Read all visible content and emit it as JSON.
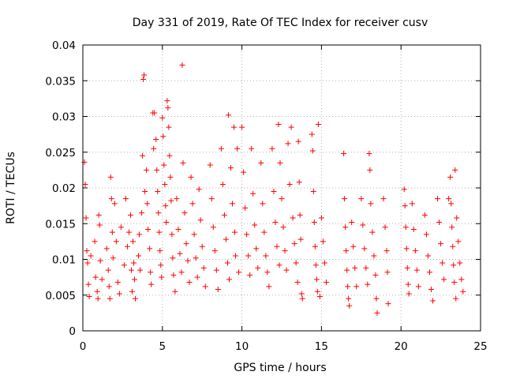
{
  "chart_data": {
    "type": "scatter",
    "title": "Day 331 of 2019, Rate Of TEC Index for receiver cusv",
    "xlabel": "GPS time / hours",
    "ylabel": "ROTI / TECUs",
    "xlim": [
      0,
      25
    ],
    "ylim": [
      0,
      0.04
    ],
    "x_ticks": [
      0,
      5,
      10,
      15,
      20,
      25
    ],
    "x_tick_labels": [
      "0",
      "5",
      "10",
      "15",
      "20",
      "25"
    ],
    "y_ticks": [
      0,
      0.005,
      0.01,
      0.015,
      0.02,
      0.025,
      0.03,
      0.035,
      0.04
    ],
    "y_tick_labels": [
      "0",
      "0.005",
      "0.01",
      "0.015",
      "0.02",
      "0.025",
      "0.03",
      "0.035",
      "0.04"
    ],
    "grid": true,
    "marker": "+",
    "marker_color": "#ff0000",
    "series": [
      {
        "name": "ROTI",
        "points": [
          [
            0.1,
            0.0236
          ],
          [
            0.15,
            0.0205
          ],
          [
            0.2,
            0.0158
          ],
          [
            0.25,
            0.0112
          ],
          [
            0.3,
            0.0095
          ],
          [
            0.35,
            0.0065
          ],
          [
            0.4,
            0.0048
          ],
          [
            0.5,
            0.0105
          ],
          [
            0.75,
            0.0125
          ],
          [
            0.8,
            0.0075
          ],
          [
            0.9,
            0.0055
          ],
          [
            0.95,
            0.0045
          ],
          [
            1.0,
            0.0162
          ],
          [
            1.05,
            0.0148
          ],
          [
            1.1,
            0.0098
          ],
          [
            1.2,
            0.0072
          ],
          [
            1.5,
            0.0115
          ],
          [
            1.6,
            0.0085
          ],
          [
            1.65,
            0.0062
          ],
          [
            1.7,
            0.0045
          ],
          [
            1.75,
            0.0215
          ],
          [
            1.8,
            0.0185
          ],
          [
            1.85,
            0.0138
          ],
          [
            1.9,
            0.0102
          ],
          [
            2.0,
            0.0178
          ],
          [
            2.1,
            0.0125
          ],
          [
            2.2,
            0.0068
          ],
          [
            2.3,
            0.0052
          ],
          [
            2.4,
            0.0145
          ],
          [
            2.6,
            0.0092
          ],
          [
            2.7,
            0.0185
          ],
          [
            2.8,
            0.0118
          ],
          [
            2.9,
            0.0138
          ],
          [
            3.0,
            0.0162
          ],
          [
            3.05,
            0.0085
          ],
          [
            3.1,
            0.0055
          ],
          [
            3.15,
            0.0125
          ],
          [
            3.2,
            0.0095
          ],
          [
            3.25,
            0.0072
          ],
          [
            3.3,
            0.0045
          ],
          [
            3.5,
            0.0105
          ],
          [
            3.55,
            0.0135
          ],
          [
            3.6,
            0.0085
          ],
          [
            3.7,
            0.0165
          ],
          [
            3.75,
            0.0245
          ],
          [
            3.8,
            0.0352
          ],
          [
            3.85,
            0.0358
          ],
          [
            3.9,
            0.0195
          ],
          [
            4.0,
            0.0225
          ],
          [
            4.05,
            0.0178
          ],
          [
            4.1,
            0.0142
          ],
          [
            4.2,
            0.0115
          ],
          [
            4.25,
            0.0082
          ],
          [
            4.3,
            0.0065
          ],
          [
            4.4,
            0.0305
          ],
          [
            4.45,
            0.0255
          ],
          [
            4.5,
            0.0305
          ],
          [
            4.6,
            0.0268
          ],
          [
            4.65,
            0.0225
          ],
          [
            4.7,
            0.0195
          ],
          [
            4.75,
            0.0165
          ],
          [
            4.8,
            0.0138
          ],
          [
            4.85,
            0.0112
          ],
          [
            4.9,
            0.0092
          ],
          [
            4.95,
            0.0075
          ],
          [
            5.0,
            0.0298
          ],
          [
            5.05,
            0.0272
          ],
          [
            5.1,
            0.0232
          ],
          [
            5.15,
            0.0205
          ],
          [
            5.2,
            0.0175
          ],
          [
            5.25,
            0.0152
          ],
          [
            5.3,
            0.0322
          ],
          [
            5.35,
            0.0312
          ],
          [
            5.4,
            0.0285
          ],
          [
            5.45,
            0.0245
          ],
          [
            5.5,
            0.0215
          ],
          [
            5.55,
            0.0182
          ],
          [
            5.6,
            0.0135
          ],
          [
            5.65,
            0.0102
          ],
          [
            5.7,
            0.0078
          ],
          [
            5.8,
            0.0055
          ],
          [
            5.9,
            0.0185
          ],
          [
            6.0,
            0.0142
          ],
          [
            6.1,
            0.0108
          ],
          [
            6.2,
            0.0082
          ],
          [
            6.25,
            0.0372
          ],
          [
            6.3,
            0.0235
          ],
          [
            6.4,
            0.0165
          ],
          [
            6.5,
            0.0122
          ],
          [
            6.6,
            0.0098
          ],
          [
            6.7,
            0.0068
          ],
          [
            6.8,
            0.0215
          ],
          [
            6.9,
            0.0178
          ],
          [
            7.0,
            0.0135
          ],
          [
            7.1,
            0.0102
          ],
          [
            7.2,
            0.0075
          ],
          [
            7.3,
            0.0198
          ],
          [
            7.4,
            0.0155
          ],
          [
            7.5,
            0.0118
          ],
          [
            7.6,
            0.0088
          ],
          [
            7.7,
            0.0062
          ],
          [
            8.0,
            0.0232
          ],
          [
            8.1,
            0.0185
          ],
          [
            8.2,
            0.0145
          ],
          [
            8.3,
            0.0112
          ],
          [
            8.4,
            0.0085
          ],
          [
            8.5,
            0.0058
          ],
          [
            8.7,
            0.0255
          ],
          [
            8.8,
            0.0205
          ],
          [
            8.9,
            0.0162
          ],
          [
            9.0,
            0.0128
          ],
          [
            9.1,
            0.0095
          ],
          [
            9.15,
            0.0302
          ],
          [
            9.2,
            0.0072
          ],
          [
            9.3,
            0.0228
          ],
          [
            9.4,
            0.0178
          ],
          [
            9.5,
            0.0285
          ],
          [
            9.55,
            0.0138
          ],
          [
            9.6,
            0.0105
          ],
          [
            9.7,
            0.0255
          ],
          [
            9.8,
            0.0082
          ],
          [
            10.0,
            0.0285
          ],
          [
            10.1,
            0.0222
          ],
          [
            10.2,
            0.0172
          ],
          [
            10.3,
            0.0135
          ],
          [
            10.4,
            0.0105
          ],
          [
            10.5,
            0.0078
          ],
          [
            10.6,
            0.0255
          ],
          [
            10.7,
            0.0192
          ],
          [
            10.8,
            0.0148
          ],
          [
            10.9,
            0.0115
          ],
          [
            11.0,
            0.0088
          ],
          [
            11.2,
            0.0235
          ],
          [
            11.3,
            0.0178
          ],
          [
            11.4,
            0.0138
          ],
          [
            11.5,
            0.0105
          ],
          [
            11.6,
            0.0082
          ],
          [
            11.7,
            0.0062
          ],
          [
            11.9,
            0.0255
          ],
          [
            12.0,
            0.0195
          ],
          [
            12.1,
            0.0152
          ],
          [
            12.2,
            0.0118
          ],
          [
            12.3,
            0.0289
          ],
          [
            12.35,
            0.0092
          ],
          [
            12.4,
            0.0235
          ],
          [
            12.5,
            0.0185
          ],
          [
            12.6,
            0.0145
          ],
          [
            12.7,
            0.0112
          ],
          [
            12.8,
            0.0085
          ],
          [
            12.9,
            0.0262
          ],
          [
            13.0,
            0.0205
          ],
          [
            13.1,
            0.0285
          ],
          [
            13.2,
            0.0158
          ],
          [
            13.3,
            0.0122
          ],
          [
            13.4,
            0.0095
          ],
          [
            13.5,
            0.0068
          ],
          [
            13.55,
            0.0265
          ],
          [
            13.6,
            0.0208
          ],
          [
            13.65,
            0.0162
          ],
          [
            13.7,
            0.0128
          ],
          [
            13.75,
            0.0052
          ],
          [
            13.8,
            0.0045
          ],
          [
            14.4,
            0.0275
          ],
          [
            14.45,
            0.0252
          ],
          [
            14.5,
            0.0195
          ],
          [
            14.55,
            0.0152
          ],
          [
            14.6,
            0.0118
          ],
          [
            14.65,
            0.0092
          ],
          [
            14.7,
            0.0072
          ],
          [
            14.75,
            0.0055
          ],
          [
            14.8,
            0.0289
          ],
          [
            14.9,
            0.0048
          ],
          [
            15.0,
            0.0158
          ],
          [
            15.1,
            0.0125
          ],
          [
            15.2,
            0.0095
          ],
          [
            15.3,
            0.0068
          ],
          [
            16.4,
            0.0248
          ],
          [
            16.45,
            0.0185
          ],
          [
            16.5,
            0.0145
          ],
          [
            16.55,
            0.0112
          ],
          [
            16.6,
            0.0085
          ],
          [
            16.65,
            0.0062
          ],
          [
            16.7,
            0.0045
          ],
          [
            16.75,
            0.0035
          ],
          [
            16.9,
            0.0152
          ],
          [
            17.0,
            0.0118
          ],
          [
            17.1,
            0.0088
          ],
          [
            17.2,
            0.0062
          ],
          [
            17.5,
            0.0185
          ],
          [
            17.6,
            0.0148
          ],
          [
            17.7,
            0.0115
          ],
          [
            17.8,
            0.0088
          ],
          [
            17.9,
            0.0065
          ],
          [
            18.0,
            0.0248
          ],
          [
            18.05,
            0.0225
          ],
          [
            18.1,
            0.0178
          ],
          [
            18.2,
            0.0138
          ],
          [
            18.3,
            0.0105
          ],
          [
            18.4,
            0.0078
          ],
          [
            18.45,
            0.0045
          ],
          [
            18.5,
            0.0025
          ],
          [
            18.9,
            0.0185
          ],
          [
            19.0,
            0.0145
          ],
          [
            19.1,
            0.0112
          ],
          [
            19.15,
            0.0082
          ],
          [
            19.2,
            0.0038
          ],
          [
            20.2,
            0.0198
          ],
          [
            20.25,
            0.0175
          ],
          [
            20.3,
            0.0145
          ],
          [
            20.35,
            0.0115
          ],
          [
            20.4,
            0.0088
          ],
          [
            20.45,
            0.0065
          ],
          [
            20.5,
            0.0052
          ],
          [
            20.7,
            0.0178
          ],
          [
            20.8,
            0.0142
          ],
          [
            20.9,
            0.0112
          ],
          [
            21.0,
            0.0085
          ],
          [
            21.1,
            0.0062
          ],
          [
            21.5,
            0.0162
          ],
          [
            21.6,
            0.0135
          ],
          [
            21.7,
            0.0105
          ],
          [
            21.8,
            0.0082
          ],
          [
            21.9,
            0.0058
          ],
          [
            22.0,
            0.0042
          ],
          [
            22.3,
            0.0185
          ],
          [
            22.4,
            0.0152
          ],
          [
            22.5,
            0.0122
          ],
          [
            22.6,
            0.0095
          ],
          [
            22.7,
            0.0072
          ],
          [
            23.0,
            0.0185
          ],
          [
            23.1,
            0.0215
          ],
          [
            23.15,
            0.0178
          ],
          [
            23.2,
            0.0145
          ],
          [
            23.25,
            0.0118
          ],
          [
            23.3,
            0.0092
          ],
          [
            23.35,
            0.0068
          ],
          [
            23.4,
            0.0225
          ],
          [
            23.45,
            0.0045
          ],
          [
            23.5,
            0.0158
          ],
          [
            23.6,
            0.0125
          ],
          [
            23.7,
            0.0095
          ],
          [
            23.8,
            0.0072
          ],
          [
            23.9,
            0.0055
          ]
        ]
      }
    ]
  }
}
